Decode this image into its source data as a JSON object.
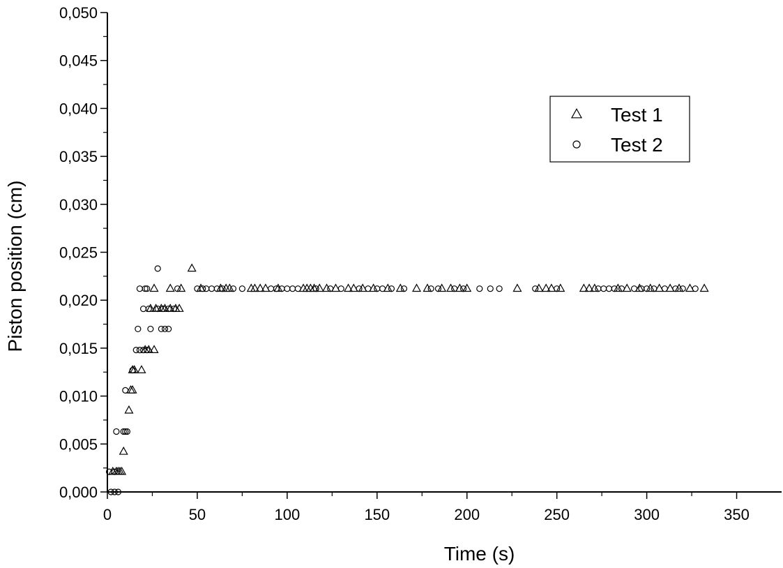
{
  "chart_data": {
    "type": "scatter",
    "title": "",
    "xlabel": "Time (s)",
    "ylabel": "Piston position (cm)",
    "xlim": [
      0,
      375
    ],
    "ylim": [
      0,
      0.05
    ],
    "x_ticks": [
      0,
      50,
      100,
      150,
      200,
      250,
      300,
      350
    ],
    "x_tick_labels": [
      "0",
      "50",
      "100",
      "150",
      "200",
      "250",
      "300",
      "350"
    ],
    "y_ticks": [
      0,
      0.005,
      0.01,
      0.015,
      0.02,
      0.025,
      0.03,
      0.035,
      0.04,
      0.045,
      0.05
    ],
    "y_tick_labels": [
      "0,000",
      "0,005",
      "0,010",
      "0,015",
      "0,020",
      "0,025",
      "0,030",
      "0,035",
      "0,040",
      "0,045",
      "0,050"
    ],
    "grid": false,
    "legend_position": "top-right",
    "series": [
      {
        "name": "Test 1",
        "marker": "triangle",
        "points": [
          [
            3,
            0.0021
          ],
          [
            5,
            0.0021
          ],
          [
            6,
            0.0021
          ],
          [
            7,
            0.0021
          ],
          [
            8,
            0.0021
          ],
          [
            9,
            0.0042
          ],
          [
            12,
            0.0085
          ],
          [
            13,
            0.0106
          ],
          [
            14,
            0.0106
          ],
          [
            14,
            0.0127
          ],
          [
            15,
            0.0127
          ],
          [
            19,
            0.0127
          ],
          [
            21,
            0.0148
          ],
          [
            23,
            0.0148
          ],
          [
            26,
            0.0148
          ],
          [
            24,
            0.0191
          ],
          [
            27,
            0.0191
          ],
          [
            30,
            0.0191
          ],
          [
            32,
            0.0191
          ],
          [
            35,
            0.0191
          ],
          [
            38,
            0.0191
          ],
          [
            40,
            0.0191
          ],
          [
            26,
            0.0212
          ],
          [
            35,
            0.0212
          ],
          [
            41,
            0.0212
          ],
          [
            47,
            0.0233
          ],
          [
            52,
            0.0212
          ],
          [
            63,
            0.0212
          ],
          [
            66,
            0.0212
          ],
          [
            68,
            0.0212
          ],
          [
            80,
            0.0212
          ],
          [
            82,
            0.0212
          ],
          [
            85,
            0.0212
          ],
          [
            88,
            0.0212
          ],
          [
            95,
            0.0212
          ],
          [
            109,
            0.0212
          ],
          [
            111,
            0.0212
          ],
          [
            113,
            0.0212
          ],
          [
            115,
            0.0212
          ],
          [
            118,
            0.0212
          ],
          [
            122,
            0.0212
          ],
          [
            127,
            0.0212
          ],
          [
            134,
            0.0212
          ],
          [
            137,
            0.0212
          ],
          [
            142,
            0.0212
          ],
          [
            148,
            0.0212
          ],
          [
            156,
            0.0212
          ],
          [
            163,
            0.0212
          ],
          [
            172,
            0.0212
          ],
          [
            178,
            0.0212
          ],
          [
            186,
            0.0212
          ],
          [
            191,
            0.0212
          ],
          [
            196,
            0.0212
          ],
          [
            200,
            0.0212
          ],
          [
            228,
            0.0212
          ],
          [
            240,
            0.0212
          ],
          [
            244,
            0.0212
          ],
          [
            247,
            0.0212
          ],
          [
            252,
            0.0212
          ],
          [
            265,
            0.0212
          ],
          [
            268,
            0.0212
          ],
          [
            271,
            0.0212
          ],
          [
            284,
            0.0212
          ],
          [
            289,
            0.0212
          ],
          [
            296,
            0.0212
          ],
          [
            302,
            0.0212
          ],
          [
            307,
            0.0212
          ],
          [
            313,
            0.0212
          ],
          [
            318,
            0.0212
          ],
          [
            324,
            0.0212
          ],
          [
            332,
            0.0212
          ]
        ]
      },
      {
        "name": "Test 2",
        "marker": "circle",
        "points": [
          [
            1,
            0.0021
          ],
          [
            4,
            0.0021
          ],
          [
            2,
            0.0
          ],
          [
            4,
            0.0
          ],
          [
            6,
            0.0
          ],
          [
            5,
            0.0063
          ],
          [
            9,
            0.0063
          ],
          [
            10,
            0.0063
          ],
          [
            11,
            0.0063
          ],
          [
            10,
            0.0106
          ],
          [
            14,
            0.0127
          ],
          [
            16,
            0.0148
          ],
          [
            18,
            0.0148
          ],
          [
            20,
            0.0148
          ],
          [
            22,
            0.0148
          ],
          [
            17,
            0.017
          ],
          [
            24,
            0.017
          ],
          [
            30,
            0.017
          ],
          [
            32,
            0.017
          ],
          [
            34,
            0.017
          ],
          [
            20,
            0.0191
          ],
          [
            23,
            0.0191
          ],
          [
            28,
            0.0191
          ],
          [
            31,
            0.0191
          ],
          [
            34,
            0.0191
          ],
          [
            37,
            0.0191
          ],
          [
            18,
            0.0212
          ],
          [
            21,
            0.0212
          ],
          [
            22,
            0.0212
          ],
          [
            39,
            0.0212
          ],
          [
            28,
            0.0233
          ],
          [
            50,
            0.0212
          ],
          [
            53,
            0.0212
          ],
          [
            55,
            0.0212
          ],
          [
            58,
            0.0212
          ],
          [
            61,
            0.0212
          ],
          [
            64,
            0.0212
          ],
          [
            70,
            0.0212
          ],
          [
            75,
            0.0212
          ],
          [
            91,
            0.0212
          ],
          [
            94,
            0.0212
          ],
          [
            97,
            0.0212
          ],
          [
            100,
            0.0212
          ],
          [
            103,
            0.0212
          ],
          [
            106,
            0.0212
          ],
          [
            116,
            0.0212
          ],
          [
            124,
            0.0212
          ],
          [
            130,
            0.0212
          ],
          [
            140,
            0.0212
          ],
          [
            145,
            0.0212
          ],
          [
            150,
            0.0212
          ],
          [
            153,
            0.0212
          ],
          [
            158,
            0.0212
          ],
          [
            165,
            0.0212
          ],
          [
            180,
            0.0212
          ],
          [
            184,
            0.0212
          ],
          [
            193,
            0.0212
          ],
          [
            198,
            0.0212
          ],
          [
            207,
            0.0212
          ],
          [
            213,
            0.0212
          ],
          [
            218,
            0.0212
          ],
          [
            238,
            0.0212
          ],
          [
            250,
            0.0212
          ],
          [
            273,
            0.0212
          ],
          [
            276,
            0.0212
          ],
          [
            279,
            0.0212
          ],
          [
            282,
            0.0212
          ],
          [
            286,
            0.0212
          ],
          [
            293,
            0.0212
          ],
          [
            297,
            0.0212
          ],
          [
            300,
            0.0212
          ],
          [
            304,
            0.0212
          ],
          [
            310,
            0.0212
          ],
          [
            316,
            0.0212
          ],
          [
            320,
            0.0212
          ],
          [
            327,
            0.0212
          ]
        ]
      }
    ]
  }
}
